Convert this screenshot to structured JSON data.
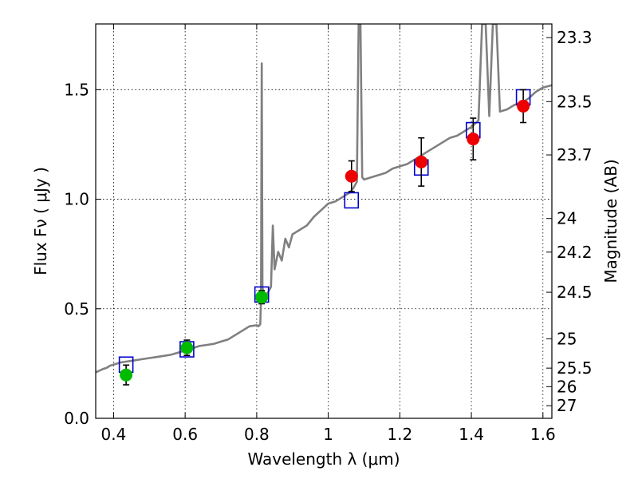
{
  "chart_data": {
    "type": "scatter",
    "xlabel": "Wavelength  λ (μm)",
    "ylabel": "Flux  Fν  ( μJy )",
    "y2label": "Magnitude (AB)",
    "xlim": [
      0.35,
      1.625
    ],
    "ylim": [
      0.0,
      1.8
    ],
    "grid": true,
    "x_ticks": [
      0.4,
      0.6,
      0.8,
      1.0,
      1.2,
      1.4,
      1.6
    ],
    "x_tick_labels": [
      "0.4",
      "0.6",
      "0.8",
      "1",
      "1.2",
      "1.4",
      "1.6"
    ],
    "y_ticks": [
      0.0,
      0.5,
      1.0,
      1.5
    ],
    "y_tick_labels": [
      "0.0",
      "0.5",
      "1.0",
      "1.5"
    ],
    "mag_ticks": [
      "23.3",
      "23.5",
      "23.7",
      "24",
      "24.2",
      "24.5",
      "25",
      "25.5",
      "26",
      "27"
    ],
    "colors": {
      "model": "#808080",
      "box": "#0000cc",
      "green": "#00bb00",
      "red": "#ee0000",
      "error": "#000000",
      "grid": "#000000"
    },
    "model_spectrum": [
      [
        0.35,
        0.21
      ],
      [
        0.37,
        0.225
      ],
      [
        0.38,
        0.23
      ],
      [
        0.39,
        0.24
      ],
      [
        0.4,
        0.245
      ],
      [
        0.42,
        0.255
      ],
      [
        0.44,
        0.26
      ],
      [
        0.46,
        0.265
      ],
      [
        0.48,
        0.27
      ],
      [
        0.5,
        0.275
      ],
      [
        0.52,
        0.28
      ],
      [
        0.54,
        0.285
      ],
      [
        0.56,
        0.29
      ],
      [
        0.58,
        0.3
      ],
      [
        0.6,
        0.31
      ],
      [
        0.62,
        0.32
      ],
      [
        0.64,
        0.33
      ],
      [
        0.66,
        0.335
      ],
      [
        0.68,
        0.34
      ],
      [
        0.7,
        0.35
      ],
      [
        0.72,
        0.36
      ],
      [
        0.74,
        0.38
      ],
      [
        0.76,
        0.4
      ],
      [
        0.78,
        0.42
      ],
      [
        0.8,
        0.425
      ],
      [
        0.805,
        0.42
      ],
      [
        0.81,
        0.43
      ],
      [
        0.812,
        0.55
      ],
      [
        0.814,
        1.62
      ],
      [
        0.816,
        0.6
      ],
      [
        0.82,
        0.55
      ],
      [
        0.83,
        0.57
      ],
      [
        0.84,
        0.6
      ],
      [
        0.845,
        0.88
      ],
      [
        0.85,
        0.68
      ],
      [
        0.86,
        0.76
      ],
      [
        0.87,
        0.72
      ],
      [
        0.88,
        0.82
      ],
      [
        0.89,
        0.78
      ],
      [
        0.9,
        0.84
      ],
      [
        0.92,
        0.86
      ],
      [
        0.94,
        0.88
      ],
      [
        0.96,
        0.92
      ],
      [
        0.98,
        0.95
      ],
      [
        1.0,
        0.98
      ],
      [
        1.02,
        0.99
      ],
      [
        1.04,
        1.01
      ],
      [
        1.06,
        1.03
      ],
      [
        1.07,
        1.05
      ],
      [
        1.08,
        1.08
      ],
      [
        1.085,
        1.8
      ],
      [
        1.09,
        1.8
      ],
      [
        1.095,
        1.1
      ],
      [
        1.1,
        1.09
      ],
      [
        1.12,
        1.1
      ],
      [
        1.14,
        1.11
      ],
      [
        1.16,
        1.12
      ],
      [
        1.18,
        1.14
      ],
      [
        1.2,
        1.15
      ],
      [
        1.22,
        1.16
      ],
      [
        1.24,
        1.18
      ],
      [
        1.26,
        1.2
      ],
      [
        1.28,
        1.22
      ],
      [
        1.3,
        1.24
      ],
      [
        1.32,
        1.26
      ],
      [
        1.34,
        1.28
      ],
      [
        1.36,
        1.29
      ],
      [
        1.38,
        1.31
      ],
      [
        1.4,
        1.33
      ],
      [
        1.42,
        1.36
      ],
      [
        1.43,
        1.8
      ],
      [
        1.44,
        1.8
      ],
      [
        1.45,
        1.38
      ],
      [
        1.46,
        1.8
      ],
      [
        1.47,
        1.8
      ],
      [
        1.48,
        1.4
      ],
      [
        1.5,
        1.41
      ],
      [
        1.52,
        1.43
      ],
      [
        1.54,
        1.44
      ],
      [
        1.56,
        1.46
      ],
      [
        1.58,
        1.49
      ],
      [
        1.6,
        1.51
      ],
      [
        1.625,
        1.52
      ]
    ],
    "model_photometry": [
      {
        "x": 0.435,
        "y": 0.245
      },
      {
        "x": 0.605,
        "y": 0.315
      },
      {
        "x": 0.814,
        "y": 0.565
      },
      {
        "x": 1.065,
        "y": 0.995
      },
      {
        "x": 1.26,
        "y": 1.145
      },
      {
        "x": 1.405,
        "y": 1.315
      },
      {
        "x": 1.545,
        "y": 1.465
      }
    ],
    "observed_optical": [
      {
        "x": 0.435,
        "y": 0.198,
        "err": 0.045
      },
      {
        "x": 0.605,
        "y": 0.322,
        "err": 0.035
      },
      {
        "x": 0.814,
        "y": 0.553,
        "err": 0.03
      }
    ],
    "observed_nir": [
      {
        "x": 1.065,
        "y": 1.105,
        "err": 0.07
      },
      {
        "x": 1.26,
        "y": 1.17,
        "err": 0.11
      },
      {
        "x": 1.405,
        "y": 1.275,
        "err": 0.095
      },
      {
        "x": 1.545,
        "y": 1.425,
        "err": 0.075
      }
    ]
  }
}
